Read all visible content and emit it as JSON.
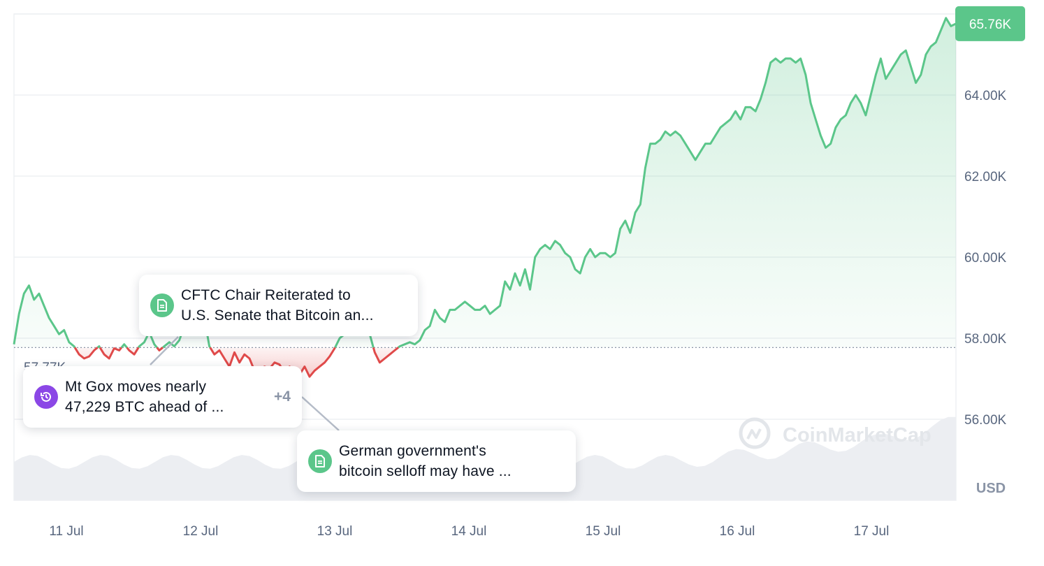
{
  "chart_data": {
    "type": "area",
    "x_labels": [
      "11 Jul",
      "12 Jul",
      "13 Jul",
      "14 Jul",
      "15 Jul",
      "16 Jul",
      "17 Jul"
    ],
    "yticks": [
      "56.00K",
      "58.00K",
      "60.00K",
      "62.00K",
      "64.00K"
    ],
    "ylim": [
      54000,
      66000
    ],
    "baseline": 57770,
    "baseline_label": "57.77K",
    "current_price": 65760,
    "current_price_label": "65.76K",
    "unit": "USD",
    "grid": true,
    "series": [
      {
        "values": [
          57850,
          58600,
          59100,
          59300,
          58950,
          59100,
          58800,
          58500,
          58300,
          58100,
          58200,
          57900,
          57800,
          57600,
          57500,
          57550,
          57700,
          57800,
          57600,
          57500,
          57750,
          57700,
          57850,
          57700,
          57600,
          57800,
          57900,
          58150,
          57850,
          57700,
          57800,
          57900,
          57800,
          57950,
          58300,
          58500,
          58450,
          58800,
          58500,
          57800,
          57600,
          57700,
          57500,
          57300,
          57650,
          57400,
          57600,
          57500,
          57200,
          57100,
          57300,
          57250,
          57400,
          57350,
          57150,
          57300,
          57200,
          57100,
          57300,
          57050,
          57200,
          57300,
          57400,
          57550,
          57750,
          58000,
          58100,
          58200,
          58300,
          58300,
          58500,
          58100,
          57650,
          57400,
          57500,
          57600,
          57700,
          57800,
          57850,
          57900,
          57850,
          57950,
          58200,
          58300,
          58700,
          58500,
          58400,
          58700,
          58700,
          58800,
          58900,
          58800,
          58700,
          58700,
          58800,
          58600,
          58700,
          58800,
          59400,
          59200,
          59600,
          59300,
          59700,
          59200,
          60000,
          60200,
          60300,
          60200,
          60400,
          60300,
          60100,
          60000,
          59700,
          59600,
          60000,
          60200,
          60000,
          60100,
          60100,
          60000,
          60100,
          60700,
          60900,
          60600,
          61100,
          61300,
          62200,
          62800,
          62800,
          62900,
          63100,
          63000,
          63100,
          63000,
          62800,
          62600,
          62400,
          62600,
          62800,
          62800,
          63000,
          63200,
          63300,
          63400,
          63600,
          63400,
          63700,
          63700,
          63600,
          63900,
          64300,
          64800,
          64900,
          64800,
          64900,
          64900,
          64800,
          64900,
          64500,
          63800,
          63400,
          63000,
          62700,
          62800,
          63200,
          63400,
          63500,
          63800,
          64000,
          63800,
          63500,
          64000,
          64500,
          64900,
          64400,
          64600,
          64800,
          65000,
          65100,
          64700,
          64300,
          64500,
          65000,
          65200,
          65300,
          65600,
          65900,
          65700,
          65760
        ]
      }
    ],
    "watermark": "CoinMarketCap"
  },
  "annotations": [
    {
      "type": "news",
      "icon": "document-icon",
      "line1": "CFTC Chair Reiterated to",
      "line2": "U.S. Senate that Bitcoin an..."
    },
    {
      "type": "event",
      "icon": "history-icon",
      "line1": "Mt Gox moves nearly",
      "line2": "47,229 BTC ahead of ...",
      "more": "+4"
    },
    {
      "type": "news",
      "icon": "document-icon",
      "line1": "German government's",
      "line2": "bitcoin selloff may have ..."
    }
  ],
  "colors": {
    "up": "#5bc68a",
    "down": "#e04a4a",
    "up_fill": "#e1f4e8",
    "down_fill": "#f7d5d5",
    "tag": "#5bc68a",
    "badge_event": "#8b47e6"
  }
}
